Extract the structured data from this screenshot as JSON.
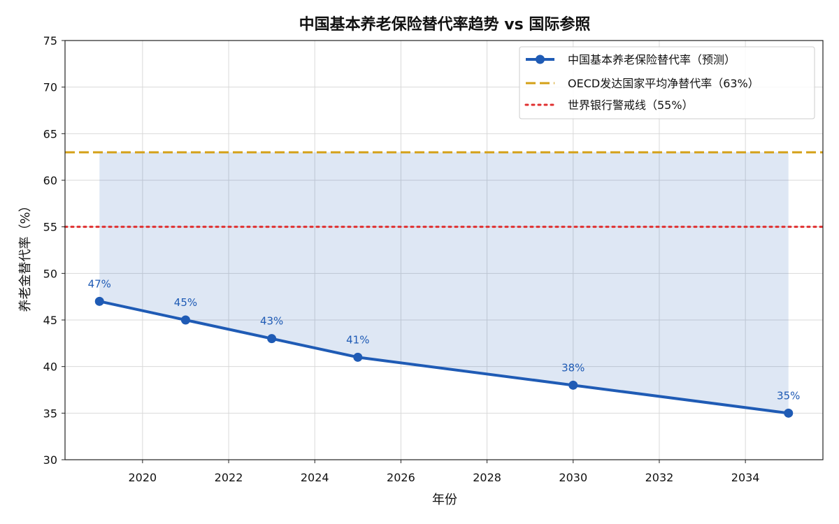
{
  "chart_data": {
    "type": "line",
    "title": "中国基本养老保险替代率趋势 vs 国际参照",
    "xlabel": "年份",
    "ylabel": "养老金替代率（%）",
    "xlim": [
      2018.2,
      2035.8
    ],
    "ylim": [
      30,
      75
    ],
    "x_ticks": [
      2020,
      2022,
      2024,
      2026,
      2028,
      2030,
      2032,
      2034
    ],
    "y_ticks": [
      30,
      35,
      40,
      45,
      50,
      55,
      60,
      65,
      70,
      75
    ],
    "grid": true,
    "legend_position": "top-right",
    "series": [
      {
        "name": "中国基本养老保险替代率（预测）",
        "style": "solid-line-with-markers",
        "color": "#1f5bb5",
        "points": [
          {
            "x": 2019,
            "y": 47,
            "label": "47%"
          },
          {
            "x": 2021,
            "y": 45,
            "label": "45%"
          },
          {
            "x": 2023,
            "y": 43,
            "label": "43%"
          },
          {
            "x": 2025,
            "y": 41,
            "label": "41%"
          },
          {
            "x": 2030,
            "y": 38,
            "label": "38%"
          },
          {
            "x": 2035,
            "y": 35,
            "label": "35%"
          }
        ]
      }
    ],
    "reference_lines": [
      {
        "name": "OECD发达国家平均净替代率（63%）",
        "y": 63,
        "style": "dashed",
        "color": "#d4a017"
      },
      {
        "name": "世界银行警戒线（55%）",
        "y": 55,
        "style": "dotted",
        "color": "#e03030"
      }
    ],
    "gap_fill": {
      "from_series": 0,
      "to_y": 63,
      "color": "#1f5bb5",
      "opacity": 0.15
    }
  }
}
